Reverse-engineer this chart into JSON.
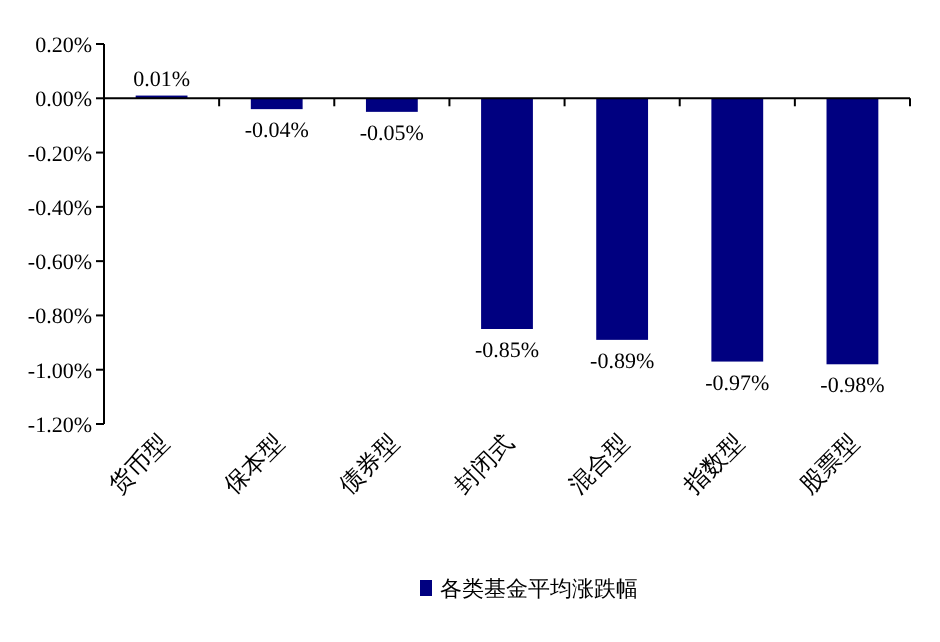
{
  "chart_data": {
    "type": "bar",
    "categories": [
      "货币型",
      "保本型",
      "债券型",
      "封闭式",
      "混合型",
      "指数型",
      "股票型"
    ],
    "series": [
      {
        "name": "各类基金平均涨跌幅",
        "color": "#000080",
        "values": [
          0.01,
          -0.04,
          -0.05,
          -0.85,
          -0.89,
          -0.97,
          -0.98
        ],
        "value_labels": [
          "0.01%",
          "-0.04%",
          "-0.05%",
          "-0.85%",
          "-0.89%",
          "-0.97%",
          "-0.98%"
        ]
      }
    ],
    "ylim": [
      -1.2,
      0.2
    ],
    "yticks": [
      {
        "value": 0.2,
        "label": "0.20%"
      },
      {
        "value": 0,
        "label": "0.00%"
      },
      {
        "value": -0.2,
        "label": "-0.20%"
      },
      {
        "value": -0.4,
        "label": "-0.40%"
      },
      {
        "value": -0.6,
        "label": "-0.60%"
      },
      {
        "value": -0.8,
        "label": "-0.80%"
      },
      {
        "value": -1.0,
        "label": "-1.00%"
      },
      {
        "value": -1.2,
        "label": "-1.20%"
      }
    ],
    "legend": "bottom"
  }
}
